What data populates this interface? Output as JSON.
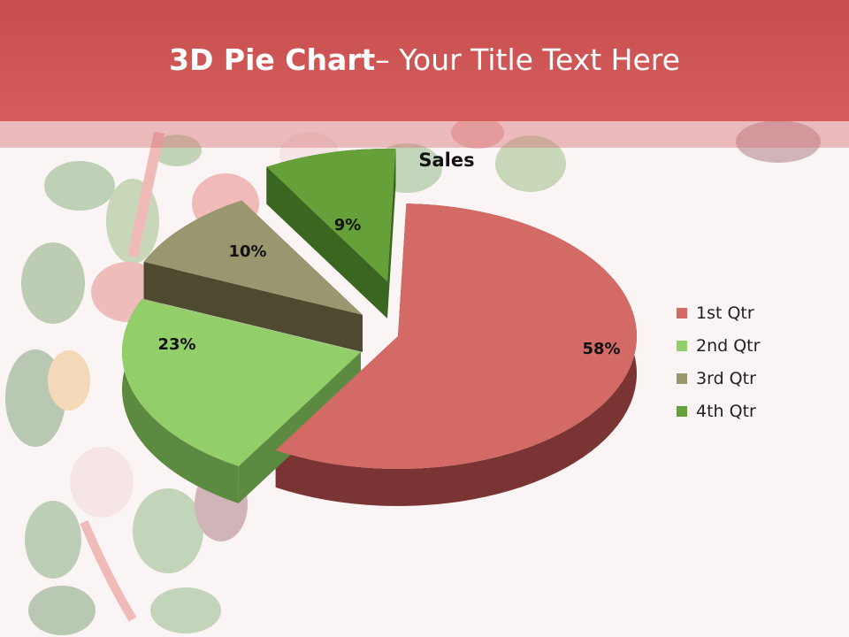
{
  "header": {
    "title_bold": "3D Pie Chart",
    "title_rest": "– Your Title Text Here"
  },
  "colors": {
    "header": "#c84e4e",
    "background": "#fbf4f4"
  },
  "chart_data": {
    "type": "pie",
    "title": "Sales",
    "categories": [
      "1st Qtr",
      "2nd Qtr",
      "3rd Qtr",
      "4th Qtr"
    ],
    "values": [
      58,
      23,
      10,
      9
    ],
    "labels": [
      "58%",
      "23%",
      "10%",
      "9%"
    ],
    "colors": [
      "#d46a66",
      "#92cf68",
      "#9a9670",
      "#66a038"
    ],
    "side_colors": [
      "#7a3434",
      "#5c8a40",
      "#4d4a30",
      "#3a6620"
    ],
    "exploded": true,
    "legend_position": "right"
  }
}
